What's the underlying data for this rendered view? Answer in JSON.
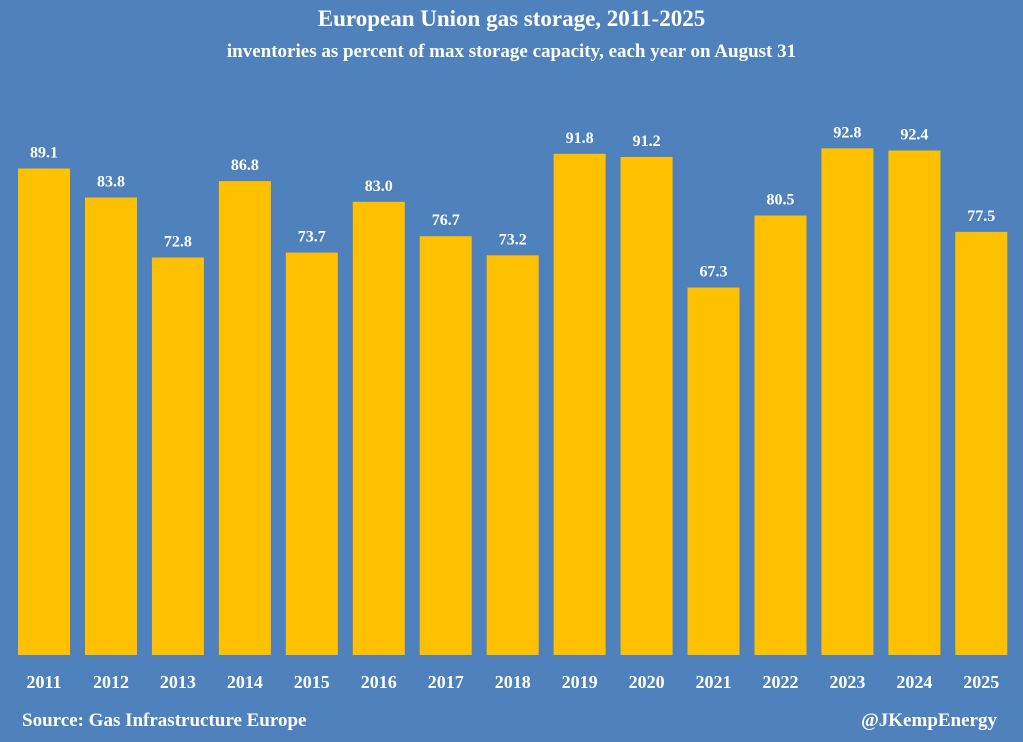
{
  "chart_data": {
    "type": "bar",
    "title": "European Union gas storage, 2011-2025",
    "subtitle": "inventories as percent of max storage capacity, each year on August 31",
    "categories": [
      "2011",
      "2012",
      "2013",
      "2014",
      "2015",
      "2016",
      "2017",
      "2018",
      "2019",
      "2020",
      "2021",
      "2022",
      "2023",
      "2024",
      "2025"
    ],
    "values": [
      89.1,
      83.8,
      72.8,
      86.8,
      73.7,
      83.0,
      76.7,
      73.2,
      91.8,
      91.2,
      67.3,
      80.5,
      92.8,
      92.4,
      77.5
    ],
    "value_labels": [
      "89.1",
      "83.8",
      "72.8",
      "86.8",
      "73.7",
      "83.0",
      "76.7",
      "73.2",
      "91.8",
      "91.2",
      "67.3",
      "80.5",
      "92.8",
      "92.4",
      "77.5"
    ],
    "xlabel": "",
    "ylabel": "",
    "ylim": [
      0,
      100
    ],
    "grid": false,
    "legend": "none"
  },
  "colors": {
    "background": "#4F81BD",
    "bar": "#FFC000",
    "text": "#FFFFFF"
  },
  "footer": {
    "source": "Source: Gas Infrastructure Europe",
    "credit": "@JKempEnergy"
  }
}
